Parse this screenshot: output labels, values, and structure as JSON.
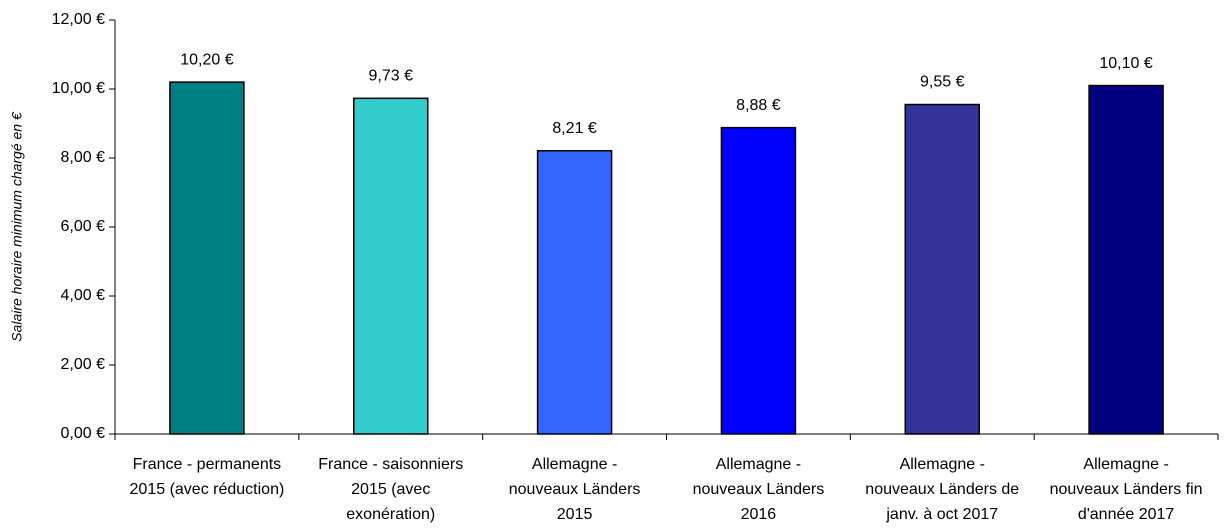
{
  "chart_data": {
    "type": "bar",
    "y_label": "Salaire horaire minimum chargé en €",
    "categories": [
      [
        "France - permanents",
        "2015 (avec réduction)"
      ],
      [
        "France - saisonniers",
        "2015 (avec",
        "exonération)"
      ],
      [
        "Allemagne -",
        "nouveaux Länders",
        "2015"
      ],
      [
        "Allemagne -",
        "nouveaux Länders",
        "2016"
      ],
      [
        "Allemagne -",
        "nouveaux Länders de",
        "janv. à oct 2017"
      ],
      [
        "Allemagne -",
        "nouveaux Länders fin",
        "d'année 2017"
      ]
    ],
    "values": [
      10.2,
      9.73,
      8.21,
      8.88,
      9.55,
      10.1
    ],
    "value_labels": [
      "10,20 €",
      "9,73 €",
      "8,21 €",
      "8,88 €",
      "9,55 €",
      "10,10 €"
    ],
    "colors": [
      "#008080",
      "#33cccc",
      "#3366ff",
      "#0000ff",
      "#333399",
      "#000080"
    ],
    "ylim": [
      0,
      12
    ],
    "yticks": [
      {
        "value": 0,
        "label": "0,00 €"
      },
      {
        "value": 2,
        "label": "2,00 €"
      },
      {
        "value": 4,
        "label": "4,00 €"
      },
      {
        "value": 6,
        "label": "6,00 €"
      },
      {
        "value": 8,
        "label": "8,00 €"
      },
      {
        "value": 10,
        "label": "10,00 €"
      },
      {
        "value": 12,
        "label": "12,00 €"
      }
    ],
    "grid": false
  }
}
